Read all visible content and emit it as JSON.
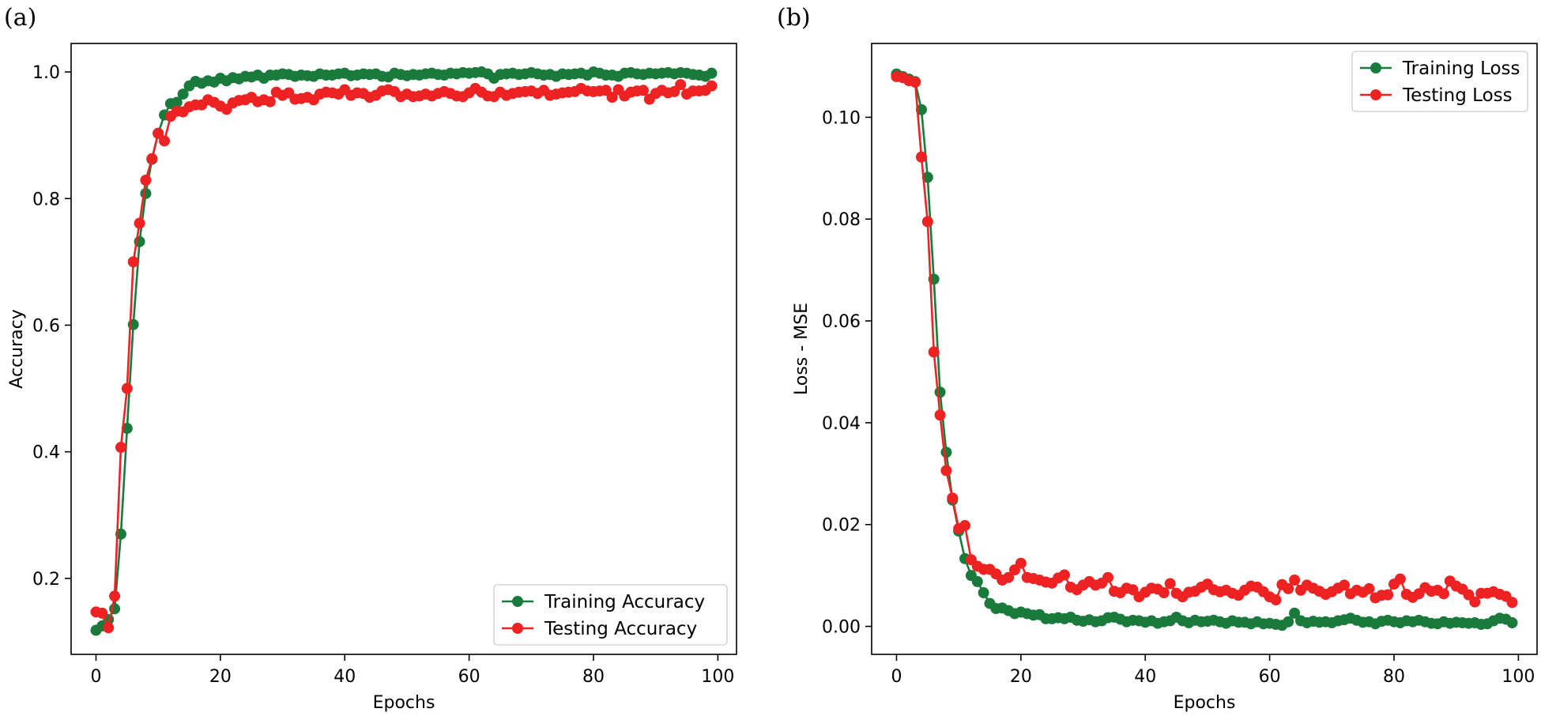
{
  "colors": {
    "training": "#1a7a3c",
    "testing": "#ee2222"
  },
  "chart_data": [
    {
      "panel_label": "(a)",
      "type": "line",
      "title": "",
      "xlabel": "Epochs",
      "ylabel": "Accuracy",
      "xlim": [
        -4,
        103
      ],
      "ylim": [
        0.08,
        1.045
      ],
      "xticks": [
        0,
        20,
        40,
        60,
        80,
        100
      ],
      "yticks": [
        0.2,
        0.4,
        0.6,
        0.8,
        1.0
      ],
      "xtick_labels": [
        "0",
        "20",
        "40",
        "60",
        "80",
        "100"
      ],
      "ytick_labels": [
        "0.2",
        "0.4",
        "0.6",
        "0.8",
        "1.0"
      ],
      "legend_loc": "lower-right",
      "series": [
        {
          "name": "Training Accuracy",
          "color_key": "training",
          "values": [
            0.118,
            0.125,
            0.135,
            0.152,
            0.27,
            0.437,
            0.601,
            0.732,
            0.808,
            0.862,
            0.903,
            0.932,
            0.95,
            0.952,
            0.965,
            0.978,
            0.985,
            0.982,
            0.986,
            0.984,
            0.99,
            0.986,
            0.991,
            0.989,
            0.993,
            0.992,
            0.995,
            0.99,
            0.995,
            0.995,
            0.997,
            0.996,
            0.993,
            0.995,
            0.994,
            0.993,
            0.997,
            0.995,
            0.995,
            0.997,
            0.998,
            0.994,
            0.995,
            0.997,
            0.996,
            0.997,
            0.993,
            0.992,
            0.998,
            0.996,
            0.994,
            0.996,
            0.995,
            0.997,
            0.998,
            0.996,
            0.995,
            0.998,
            0.997,
            0.999,
            0.998,
            0.999,
            1.0,
            0.997,
            0.99,
            0.996,
            0.997,
            0.998,
            0.996,
            0.997,
            0.999,
            0.997,
            0.995,
            0.996,
            0.993,
            0.997,
            0.996,
            0.997,
            0.998,
            0.995,
            1.0,
            0.998,
            0.995,
            0.995,
            0.993,
            0.998,
            0.999,
            0.997,
            0.996,
            0.998,
            0.997,
            0.998,
            0.999,
            0.997,
            0.999,
            0.998,
            0.996,
            0.995,
            0.993,
            0.998
          ]
        },
        {
          "name": "Testing Accuracy",
          "color_key": "testing",
          "values": [
            0.147,
            0.145,
            0.122,
            0.172,
            0.407,
            0.5,
            0.7,
            0.761,
            0.829,
            0.863,
            0.903,
            0.891,
            0.93,
            0.938,
            0.937,
            0.945,
            0.948,
            0.948,
            0.956,
            0.952,
            0.946,
            0.941,
            0.951,
            0.955,
            0.956,
            0.96,
            0.953,
            0.956,
            0.953,
            0.968,
            0.963,
            0.967,
            0.957,
            0.958,
            0.96,
            0.956,
            0.965,
            0.968,
            0.967,
            0.965,
            0.972,
            0.963,
            0.967,
            0.966,
            0.96,
            0.963,
            0.97,
            0.972,
            0.969,
            0.961,
            0.965,
            0.961,
            0.962,
            0.965,
            0.962,
            0.966,
            0.969,
            0.966,
            0.962,
            0.961,
            0.967,
            0.974,
            0.968,
            0.962,
            0.961,
            0.968,
            0.963,
            0.966,
            0.968,
            0.969,
            0.97,
            0.966,
            0.971,
            0.963,
            0.965,
            0.967,
            0.968,
            0.969,
            0.974,
            0.97,
            0.969,
            0.97,
            0.971,
            0.96,
            0.972,
            0.962,
            0.968,
            0.97,
            0.971,
            0.957,
            0.966,
            0.971,
            0.967,
            0.969,
            0.98,
            0.965,
            0.97,
            0.97,
            0.971,
            0.978
          ]
        }
      ]
    },
    {
      "panel_label": "(b)",
      "type": "line",
      "title": "",
      "xlabel": "Epochs",
      "ylabel": "Loss - MSE",
      "xlim": [
        -4,
        103
      ],
      "ylim": [
        -0.0055,
        0.1145
      ],
      "xticks": [
        0,
        20,
        40,
        60,
        80,
        100
      ],
      "yticks": [
        0.0,
        0.02,
        0.04,
        0.06,
        0.08,
        0.1
      ],
      "xtick_labels": [
        "0",
        "20",
        "40",
        "60",
        "80",
        "100"
      ],
      "ytick_labels": [
        "0.00",
        "0.02",
        "0.04",
        "0.06",
        "0.08",
        "0.10"
      ],
      "legend_loc": "upper-right",
      "series": [
        {
          "name": "Training Loss",
          "color_key": "training",
          "values": [
            0.1085,
            0.108,
            0.1075,
            0.107,
            0.1015,
            0.0882,
            0.0682,
            0.046,
            0.0342,
            0.0248,
            0.0187,
            0.0133,
            0.01,
            0.0088,
            0.0066,
            0.0045,
            0.0035,
            0.0036,
            0.0031,
            0.0025,
            0.0028,
            0.0025,
            0.0022,
            0.0023,
            0.0015,
            0.0015,
            0.0017,
            0.0015,
            0.0018,
            0.0012,
            0.001,
            0.0013,
            0.0009,
            0.0011,
            0.0017,
            0.0018,
            0.0014,
            0.0009,
            0.0012,
            0.0011,
            0.0008,
            0.0011,
            0.0006,
            0.0009,
            0.0011,
            0.0018,
            0.0011,
            0.0007,
            0.0012,
            0.0009,
            0.001,
            0.0012,
            0.0009,
            0.0006,
            0.0011,
            0.0008,
            0.0008,
            0.0005,
            0.0009,
            0.0005,
            0.0006,
            0.0004,
            0.0002,
            0.0009,
            0.0026,
            0.0011,
            0.0007,
            0.001,
            0.0008,
            0.0009,
            0.0007,
            0.0011,
            0.0013,
            0.0016,
            0.0012,
            0.0008,
            0.0009,
            0.0005,
            0.001,
            0.0012,
            0.0009,
            0.0007,
            0.0011,
            0.0009,
            0.0012,
            0.0009,
            0.0006,
            0.0005,
            0.0009,
            0.0006,
            0.0008,
            0.0007,
            0.0006,
            0.0007,
            0.0004,
            0.0005,
            0.0011,
            0.0016,
            0.0014,
            0.0007
          ]
        },
        {
          "name": "Testing Loss",
          "color_key": "testing",
          "values": [
            0.108,
            0.1078,
            0.1072,
            0.1069,
            0.0922,
            0.0795,
            0.0539,
            0.0415,
            0.0306,
            0.0252,
            0.0192,
            0.0198,
            0.0131,
            0.0118,
            0.0112,
            0.0112,
            0.0103,
            0.0091,
            0.0096,
            0.0111,
            0.0124,
            0.0096,
            0.0094,
            0.0091,
            0.0087,
            0.0085,
            0.0095,
            0.0101,
            0.0077,
            0.0072,
            0.0081,
            0.0088,
            0.0081,
            0.0085,
            0.0096,
            0.0069,
            0.0066,
            0.0075,
            0.0072,
            0.0058,
            0.0067,
            0.0075,
            0.0073,
            0.0066,
            0.0084,
            0.0065,
            0.0058,
            0.0067,
            0.0069,
            0.0077,
            0.0083,
            0.0072,
            0.0068,
            0.0071,
            0.0065,
            0.0061,
            0.0071,
            0.0079,
            0.0077,
            0.0068,
            0.0058,
            0.0052,
            0.0082,
            0.0074,
            0.0091,
            0.0071,
            0.0081,
            0.0075,
            0.0069,
            0.0063,
            0.0068,
            0.0075,
            0.0081,
            0.0064,
            0.0071,
            0.0067,
            0.0074,
            0.0056,
            0.0061,
            0.0062,
            0.0083,
            0.0093,
            0.0063,
            0.0057,
            0.0064,
            0.0076,
            0.0069,
            0.0071,
            0.0064,
            0.0089,
            0.0079,
            0.0073,
            0.0062,
            0.0048,
            0.0065,
            0.0065,
            0.0068,
            0.0063,
            0.0059,
            0.0047
          ]
        }
      ]
    }
  ]
}
